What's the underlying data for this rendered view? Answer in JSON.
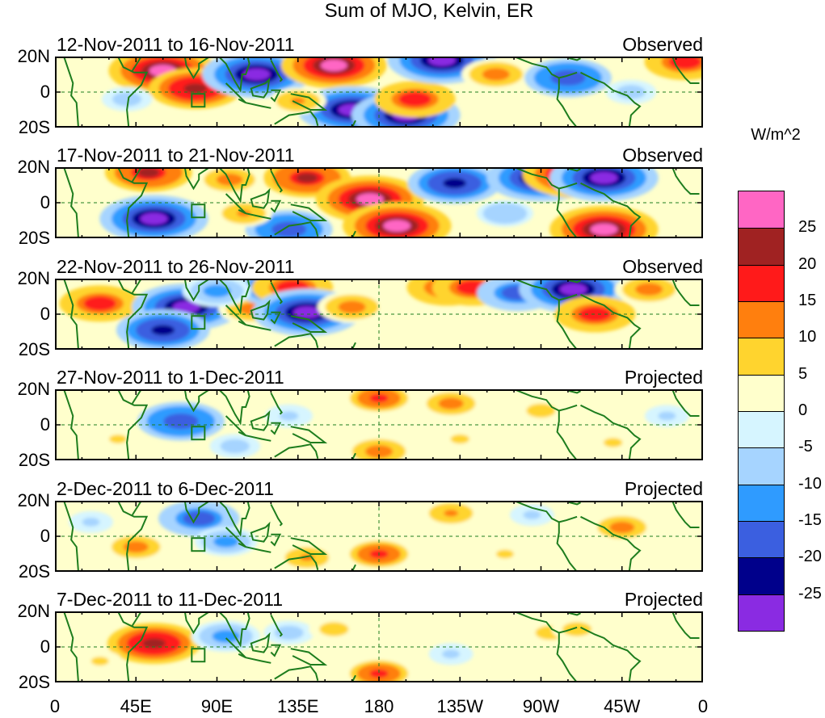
{
  "chart_data": {
    "type": "heatmap",
    "title": "Sum of MJO, Kelvin, ER",
    "units": "W/m^2",
    "x_tick_labels": [
      "0",
      "45E",
      "90E",
      "135E",
      "180",
      "135W",
      "90W",
      "45W",
      "0"
    ],
    "y_tick_labels": [
      "20N",
      "0",
      "20S"
    ],
    "xlim": [
      0,
      360
    ],
    "ylim": [
      -20,
      20
    ],
    "colorbar": {
      "labels": [
        "25",
        "20",
        "15",
        "10",
        "5",
        "0",
        "-5",
        "-10",
        "-15",
        "-20",
        "-25"
      ],
      "levels": [
        25,
        20,
        15,
        10,
        5,
        0,
        -5,
        -10,
        -15,
        -20,
        -25
      ],
      "colors": [
        "#ff66c4",
        "#a02222",
        "#ff1a1a",
        "#ff7f0e",
        "#ffd42e",
        "#ffffcc",
        "#d6f5ff",
        "#a6d4ff",
        "#2f9bff",
        "#3b5fe0",
        "#00008b",
        "#8a2be2"
      ]
    },
    "panels": [
      {
        "period": "12-Nov-2011 to 16-Nov-2011",
        "status": "Observed",
        "anomalies": [
          {
            "lon": 60,
            "lat": 12,
            "v": 27
          },
          {
            "lon": 78,
            "lat": 2,
            "v": 22
          },
          {
            "lon": 112,
            "lat": 10,
            "v": -27
          },
          {
            "lon": 155,
            "lat": 15,
            "v": 26
          },
          {
            "lon": 165,
            "lat": -10,
            "v": -27
          },
          {
            "lon": 195,
            "lat": -13,
            "v": -27
          },
          {
            "lon": 200,
            "lat": -4,
            "v": 18
          },
          {
            "lon": 215,
            "lat": 18,
            "v": -27
          },
          {
            "lon": 245,
            "lat": 10,
            "v": 14
          },
          {
            "lon": 285,
            "lat": 8,
            "v": -20
          },
          {
            "lon": 350,
            "lat": 17,
            "v": 18
          },
          {
            "lon": 40,
            "lat": -4,
            "v": -8
          },
          {
            "lon": 135,
            "lat": -5,
            "v": 10
          },
          {
            "lon": 320,
            "lat": 0,
            "v": -8
          }
        ]
      },
      {
        "period": "17-Nov-2011 to 21-Nov-2011",
        "status": "Observed",
        "anomalies": [
          {
            "lon": 52,
            "lat": 17,
            "v": 20
          },
          {
            "lon": 55,
            "lat": -9,
            "v": -27
          },
          {
            "lon": 97,
            "lat": 13,
            "v": 13
          },
          {
            "lon": 140,
            "lat": 14,
            "v": 20
          },
          {
            "lon": 175,
            "lat": 2,
            "v": 27
          },
          {
            "lon": 190,
            "lat": -13,
            "v": 27
          },
          {
            "lon": 222,
            "lat": 11,
            "v": -22
          },
          {
            "lon": 270,
            "lat": 14,
            "v": -27
          },
          {
            "lon": 290,
            "lat": 16,
            "v": 27
          },
          {
            "lon": 305,
            "lat": 14,
            "v": -27
          },
          {
            "lon": 305,
            "lat": -15,
            "v": 27
          },
          {
            "lon": 130,
            "lat": -15,
            "v": -20
          },
          {
            "lon": 105,
            "lat": -6,
            "v": 10
          },
          {
            "lon": 250,
            "lat": -6,
            "v": -10
          }
        ]
      },
      {
        "period": "22-Nov-2011 to 26-Nov-2011",
        "status": "Observed",
        "anomalies": [
          {
            "lon": 25,
            "lat": 6,
            "v": 18
          },
          {
            "lon": 73,
            "lat": 4,
            "v": -27
          },
          {
            "lon": 60,
            "lat": -9,
            "v": -22
          },
          {
            "lon": 110,
            "lat": 3,
            "v": 14
          },
          {
            "lon": 125,
            "lat": 15,
            "v": -20
          },
          {
            "lon": 132,
            "lat": 15,
            "v": 18
          },
          {
            "lon": 140,
            "lat": 1,
            "v": -27
          },
          {
            "lon": 165,
            "lat": 4,
            "v": 14
          },
          {
            "lon": 218,
            "lat": 15,
            "v": 18
          },
          {
            "lon": 232,
            "lat": 15,
            "v": 18
          },
          {
            "lon": 257,
            "lat": 12,
            "v": -18
          },
          {
            "lon": 288,
            "lat": 14,
            "v": -27
          },
          {
            "lon": 300,
            "lat": 0,
            "v": 18
          },
          {
            "lon": 330,
            "lat": 14,
            "v": 14
          },
          {
            "lon": 90,
            "lat": 13,
            "v": -14
          }
        ]
      },
      {
        "period": "27-Nov-2011 to 1-Dec-2011",
        "status": "Projected",
        "anomalies": [
          {
            "lon": 70,
            "lat": 2,
            "v": -20
          },
          {
            "lon": 180,
            "lat": 15,
            "v": 16
          },
          {
            "lon": 220,
            "lat": 12,
            "v": 12
          },
          {
            "lon": 270,
            "lat": 8,
            "v": 8
          },
          {
            "lon": 180,
            "lat": -15,
            "v": 14
          },
          {
            "lon": 35,
            "lat": -8,
            "v": 6
          },
          {
            "lon": 130,
            "lat": 5,
            "v": -7
          },
          {
            "lon": 225,
            "lat": -8,
            "v": 7
          },
          {
            "lon": 310,
            "lat": -10,
            "v": 7
          },
          {
            "lon": 100,
            "lat": -12,
            "v": -8
          },
          {
            "lon": 340,
            "lat": 5,
            "v": -6
          }
        ]
      },
      {
        "period": "2-Dec-2011 to 6-Dec-2011",
        "status": "Projected",
        "anomalies": [
          {
            "lon": 80,
            "lat": 10,
            "v": -18
          },
          {
            "lon": 95,
            "lat": -3,
            "v": -12
          },
          {
            "lon": 180,
            "lat": -10,
            "v": 16
          },
          {
            "lon": 140,
            "lat": -12,
            "v": 10
          },
          {
            "lon": 220,
            "lat": 13,
            "v": 10
          },
          {
            "lon": 315,
            "lat": 5,
            "v": 12
          },
          {
            "lon": 45,
            "lat": -6,
            "v": 12
          },
          {
            "lon": 265,
            "lat": 12,
            "v": -6
          },
          {
            "lon": 250,
            "lat": -10,
            "v": 6
          },
          {
            "lon": 20,
            "lat": 8,
            "v": -6
          }
        ]
      },
      {
        "period": "7-Dec-2011 to 11-Dec-2011",
        "status": "Projected",
        "anomalies": [
          {
            "lon": 55,
            "lat": 2,
            "v": 22
          },
          {
            "lon": 95,
            "lat": 6,
            "v": -14
          },
          {
            "lon": 130,
            "lat": 8,
            "v": -8
          },
          {
            "lon": 180,
            "lat": -15,
            "v": 16
          },
          {
            "lon": 155,
            "lat": 10,
            "v": 8
          },
          {
            "lon": 275,
            "lat": 8,
            "v": 8
          },
          {
            "lon": 290,
            "lat": 10,
            "v": 8
          },
          {
            "lon": 25,
            "lat": -8,
            "v": 6
          },
          {
            "lon": 220,
            "lat": -4,
            "v": -6
          }
        ]
      }
    ]
  }
}
